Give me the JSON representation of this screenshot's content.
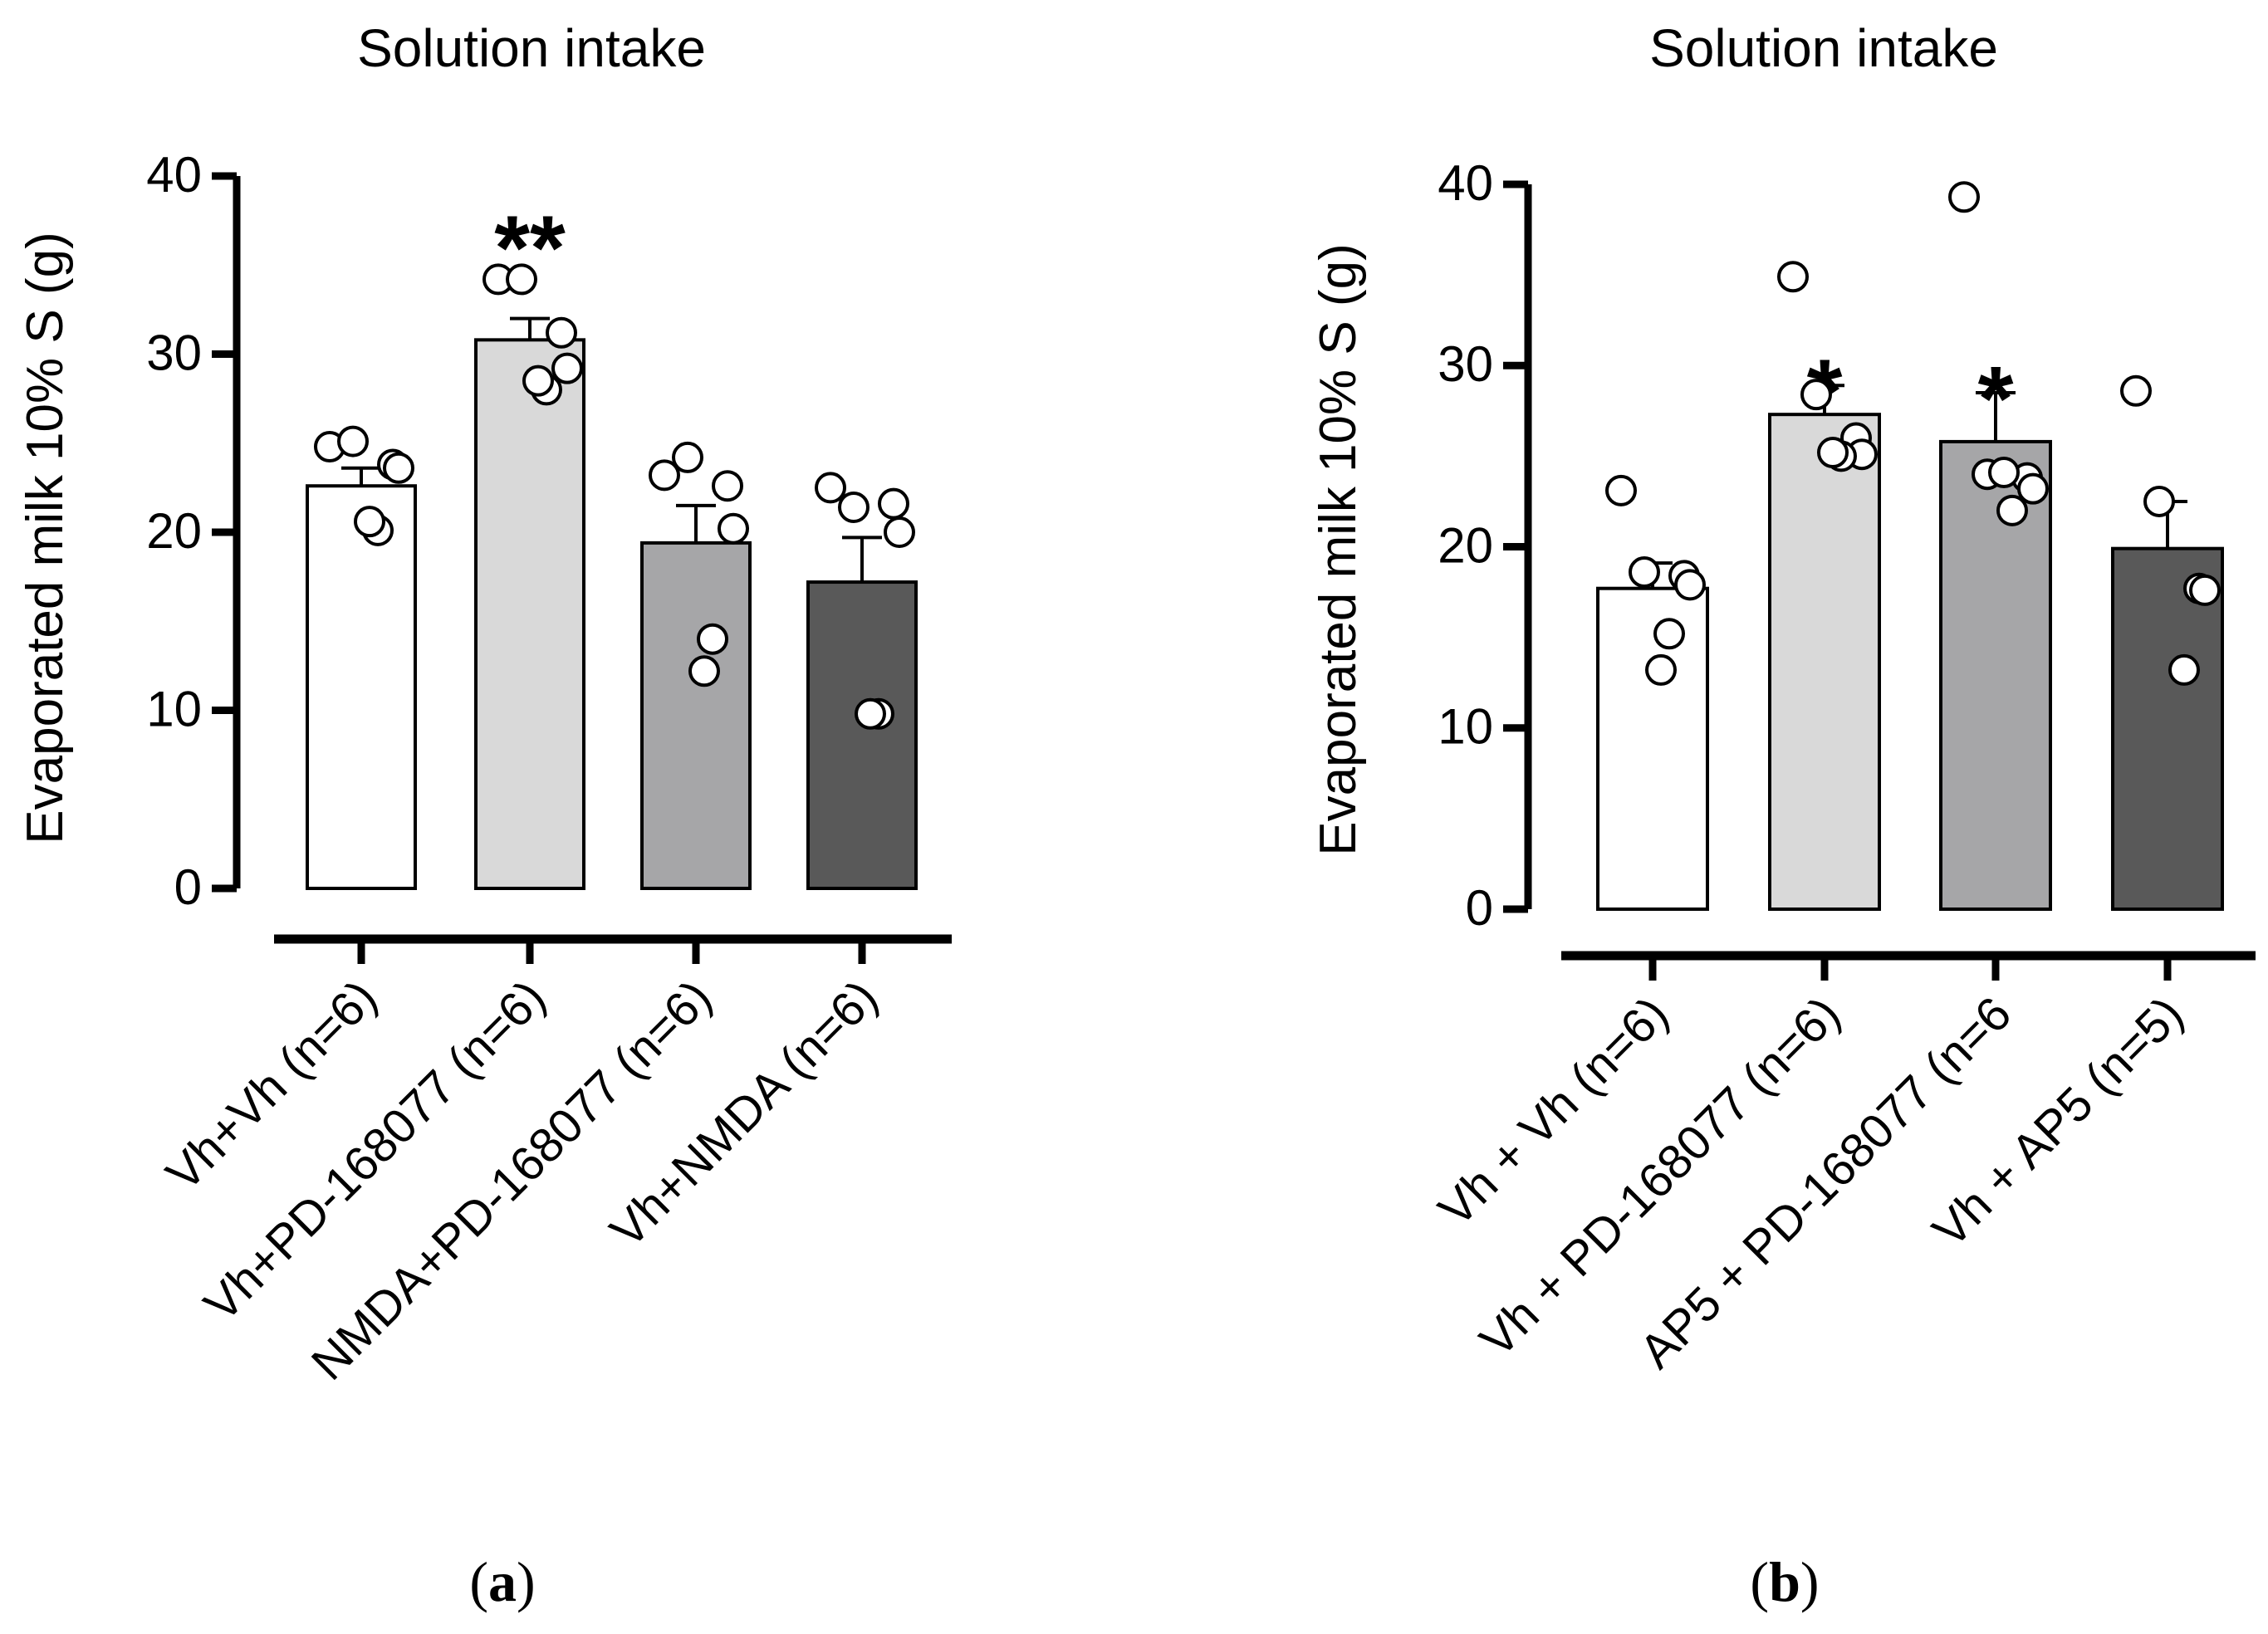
{
  "chart_data": [
    {
      "type": "bar",
      "panel_label": "a",
      "title": "Solution intake",
      "ylabel": "Evaporated milk 10% S (g)",
      "xlabel": "",
      "ylim": [
        0,
        40
      ],
      "yticks": [
        "0",
        "10",
        "20",
        "30",
        "40"
      ],
      "categories": [
        "Vh+Vh (n=6)",
        "Vh+PD-168077 (n=6)",
        "NMDA+PD-168077 (n=6)",
        "Vh+NMDA (n=6)"
      ],
      "values": [
        22.6,
        30.8,
        19.4,
        17.2
      ],
      "sem": [
        1.0,
        1.2,
        2.1,
        2.5
      ],
      "fills": [
        "#ffffff",
        "#d9d9d9",
        "#a6a6a8",
        "#595959"
      ],
      "significance": [
        "",
        "**",
        "",
        ""
      ],
      "points": [
        [
          24.8,
          25.1,
          23.8,
          23.6,
          20.1,
          20.6
        ],
        [
          34.2,
          34.2,
          31.2,
          29.2,
          28.0,
          28.5
        ],
        [
          23.2,
          24.2,
          22.6,
          20.2,
          14.0,
          12.2
        ],
        [
          22.5,
          21.4,
          21.6,
          20.0,
          9.8,
          9.8
        ]
      ]
    },
    {
      "type": "bar",
      "panel_label": "b",
      "title": "Solution intake",
      "ylabel": "Evaporated milk 10% S (g)",
      "xlabel": "",
      "ylim": [
        0,
        40
      ],
      "yticks": [
        "0",
        "10",
        "20",
        "30",
        "40"
      ],
      "categories": [
        "Vh + Vh (n=6)",
        "Vh + PD-168077 (n=6)",
        "AP5 + PD-168077 (n=6",
        "Vh + AP5 (n=5)"
      ],
      "values": [
        17.7,
        27.3,
        25.8,
        19.9
      ],
      "sem": [
        1.4,
        1.6,
        2.7,
        2.6
      ],
      "fills": [
        "#ffffff",
        "#d9d9d9",
        "#a6a6a8",
        "#595959"
      ],
      "significance": [
        "",
        "*",
        "*",
        ""
      ],
      "points": [
        [
          23.1,
          18.6,
          18.4,
          17.9,
          15.2,
          13.2
        ],
        [
          34.9,
          28.4,
          26.0,
          25.1,
          25.0,
          25.2
        ],
        [
          39.3,
          24.0,
          23.8,
          23.2,
          22.0,
          24.1
        ],
        [
          28.6,
          22.5,
          17.7,
          17.6,
          13.2
        ]
      ]
    }
  ]
}
